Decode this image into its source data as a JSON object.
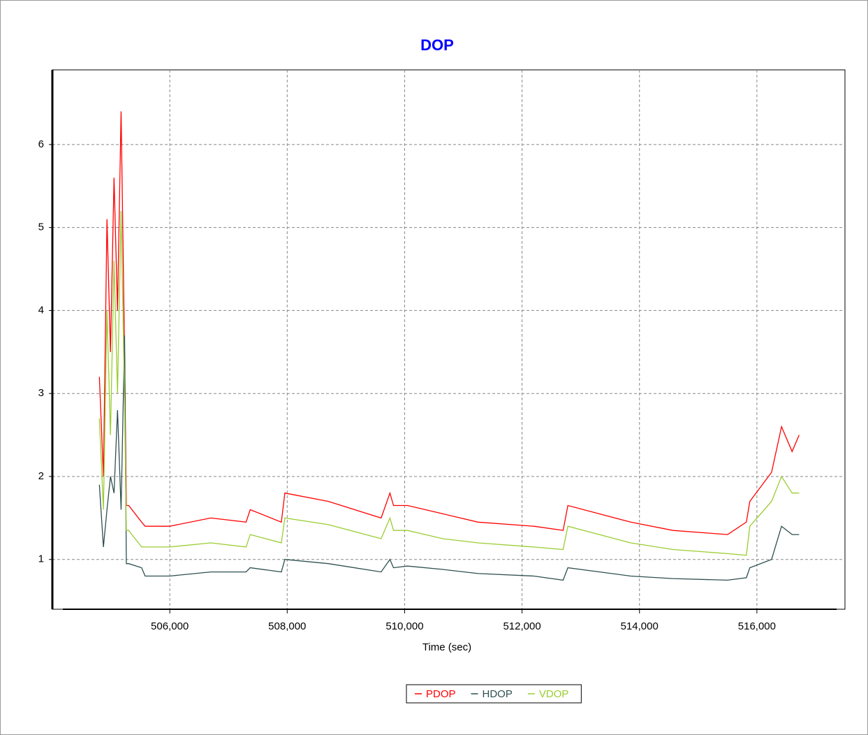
{
  "chart_data": {
    "type": "line",
    "title": "DOP",
    "xlabel": "Time (sec)",
    "x": [
      504800,
      504870,
      504930,
      504990,
      505050,
      505110,
      505170,
      505230,
      505260,
      505300,
      505520,
      505580,
      505700,
      506000,
      506700,
      507300,
      507370,
      507900,
      507960,
      508700,
      509600,
      509750,
      509810,
      510050,
      510650,
      511250,
      512200,
      512700,
      512780,
      513850,
      514570,
      515500,
      515820,
      515880,
      516250,
      516420,
      516600,
      516720
    ],
    "series": [
      {
        "name": "PDOP",
        "color": "#ff0000",
        "values": [
          3.2,
          2.0,
          5.1,
          3.5,
          5.6,
          4.0,
          6.4,
          3.5,
          1.65,
          1.65,
          1.45,
          1.4,
          1.4,
          1.4,
          1.5,
          1.45,
          1.6,
          1.45,
          1.8,
          1.7,
          1.5,
          1.8,
          1.65,
          1.65,
          1.55,
          1.45,
          1.4,
          1.35,
          1.65,
          1.45,
          1.35,
          1.3,
          1.45,
          1.7,
          2.05,
          2.6,
          2.3,
          2.5
        ]
      },
      {
        "name": "HDOP",
        "color": "#2f4f4f",
        "values": [
          1.9,
          1.15,
          1.6,
          2.0,
          1.8,
          2.8,
          1.6,
          3.7,
          0.95,
          0.95,
          0.9,
          0.8,
          0.8,
          0.8,
          0.85,
          0.85,
          0.9,
          0.85,
          1.0,
          0.95,
          0.85,
          1.0,
          0.9,
          0.92,
          0.88,
          0.83,
          0.8,
          0.75,
          0.9,
          0.8,
          0.77,
          0.75,
          0.78,
          0.9,
          1.0,
          1.4,
          1.3,
          1.3
        ]
      },
      {
        "name": "VDOP",
        "color": "#9acd32",
        "values": [
          2.7,
          1.6,
          4.0,
          2.5,
          4.6,
          3.0,
          5.2,
          2.9,
          1.35,
          1.35,
          1.15,
          1.15,
          1.15,
          1.15,
          1.2,
          1.15,
          1.3,
          1.2,
          1.5,
          1.42,
          1.25,
          1.5,
          1.35,
          1.35,
          1.25,
          1.2,
          1.15,
          1.12,
          1.4,
          1.2,
          1.12,
          1.07,
          1.05,
          1.4,
          1.7,
          2.0,
          1.8,
          1.8
        ]
      }
    ],
    "xlim": [
      504000,
      517500
    ],
    "xticks": [
      {
        "value": 506000,
        "label": "506,000"
      },
      {
        "value": 508000,
        "label": "508,000"
      },
      {
        "value": 510000,
        "label": "510,000"
      },
      {
        "value": 512000,
        "label": "512,000"
      },
      {
        "value": 514000,
        "label": "514,000"
      },
      {
        "value": 516000,
        "label": "516,000"
      }
    ],
    "ylim": [
      0.4,
      6.9
    ],
    "yticks": [
      1,
      2,
      3,
      4,
      5,
      6
    ],
    "grid": true,
    "legend": "bottom"
  }
}
